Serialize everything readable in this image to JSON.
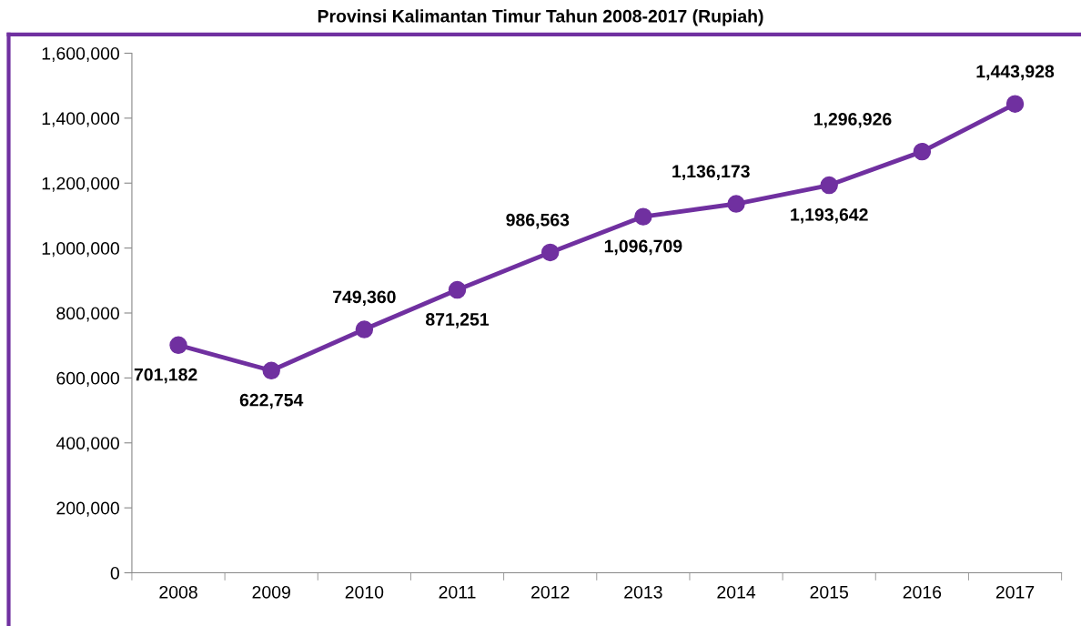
{
  "chart_data": {
    "type": "line",
    "title": "Provinsi Kalimantan Timur Tahun 2008-2017 (Rupiah)",
    "categories": [
      "2008",
      "2009",
      "2010",
      "2011",
      "2012",
      "2013",
      "2014",
      "2015",
      "2016",
      "2017"
    ],
    "series": [
      {
        "color": "#7030a0",
        "values": [
          701182,
          622754,
          749360,
          871251,
          986563,
          1096709,
          1136173,
          1193642,
          1296926,
          1443928
        ]
      }
    ],
    "ylim": [
      0,
      1600000
    ],
    "yticks": [
      {
        "value": 0,
        "label": "0"
      },
      {
        "value": 200000,
        "label": "200,000"
      },
      {
        "value": 400000,
        "label": "400,000"
      },
      {
        "value": 600000,
        "label": "600,000"
      },
      {
        "value": 800000,
        "label": "800,000"
      },
      {
        "value": 1000000,
        "label": "1,000,000"
      },
      {
        "value": 1200000,
        "label": "1,200,000"
      },
      {
        "value": 1400000,
        "label": "1,400,000"
      },
      {
        "value": 1600000,
        "label": "1,600,000"
      }
    ],
    "value_labels": [
      "701,182",
      "622,754",
      "749,360",
      "871,251",
      "986,563",
      "1,096,709",
      "1,136,173",
      "1,193,642",
      "1,296,926",
      "1,443,928"
    ],
    "marker": "circle",
    "line_style": "solid",
    "grid": false
  }
}
